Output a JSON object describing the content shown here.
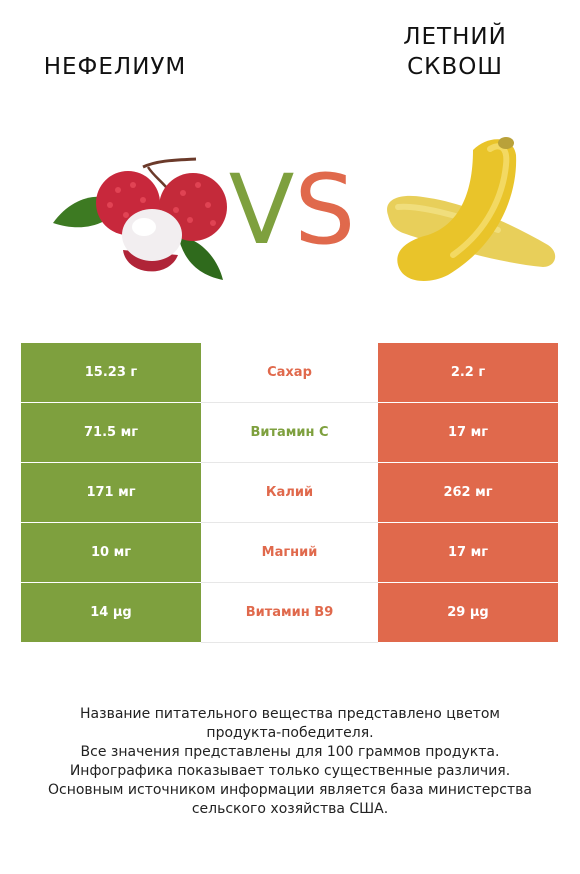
{
  "left_food": {
    "name": "НЕФЕЛИУМ"
  },
  "right_food": {
    "name_line1": "ЛЕТНИЙ",
    "name_line2": "СКВОШ"
  },
  "vs": {
    "v": "V",
    "s": "S"
  },
  "colors": {
    "left": "#7ea03e",
    "right": "#e0694c"
  },
  "rows": [
    {
      "left": "15.23 г",
      "nutrient": "Сахар",
      "right": "2.2 г",
      "winner": "right"
    },
    {
      "left": "71.5 мг",
      "nutrient": "Витамин C",
      "right": "17 мг",
      "winner": "left"
    },
    {
      "left": "171 мг",
      "nutrient": "Калий",
      "right": "262 мг",
      "winner": "right"
    },
    {
      "left": "10 мг",
      "nutrient": "Магний",
      "right": "17 мг",
      "winner": "right"
    },
    {
      "left": "14 µg",
      "nutrient": "Витамин B9",
      "right": "29 µg",
      "winner": "right"
    }
  ],
  "footnote": {
    "line1": "Название питательного вещества представлено цветом",
    "line2": "продукта-победителя.",
    "line3": "Все значения представлены для 100 граммов продукта.",
    "line4": "Инфографика показывает только существенные различия.",
    "line5": "Основным источником информации является база министерства",
    "line6": "сельского хозяйства США."
  }
}
